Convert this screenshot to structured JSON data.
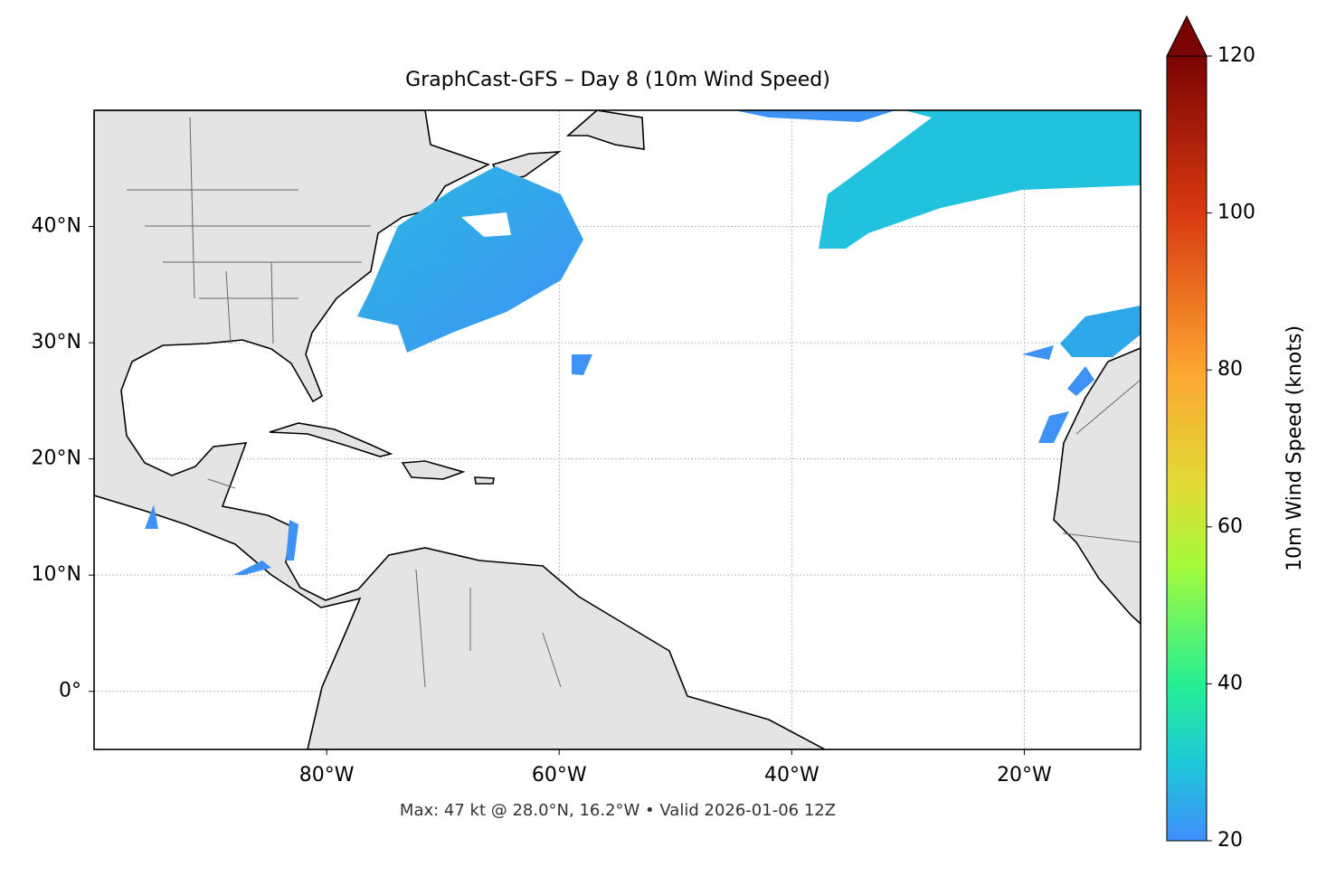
{
  "chart_data": {
    "type": "map",
    "title": "GraphCast-GFS – Day 8 (10m Wind Speed)",
    "annotation": "Max: 47 kt @ 28.0°N, 16.2°W • Valid 2026-01-06 12Z",
    "xlim": [
      -100,
      -10
    ],
    "ylim": [
      -5,
      50
    ],
    "xticks": [
      {
        "value": -80,
        "label": "80°W"
      },
      {
        "value": -60,
        "label": "60°W"
      },
      {
        "value": -40,
        "label": "40°W"
      },
      {
        "value": -20,
        "label": "20°W"
      }
    ],
    "yticks": [
      {
        "value": 0,
        "label": "0°"
      },
      {
        "value": 10,
        "label": "10°N"
      },
      {
        "value": 20,
        "label": "20°N"
      },
      {
        "value": 30,
        "label": "30°N"
      },
      {
        "value": 40,
        "label": "40°N"
      }
    ],
    "grid": true,
    "colorbar": {
      "label": "10m Wind Speed (knots)",
      "lim": [
        20,
        120
      ],
      "ticks": [
        20,
        40,
        60,
        80,
        100,
        120
      ],
      "extend": "max"
    }
  }
}
